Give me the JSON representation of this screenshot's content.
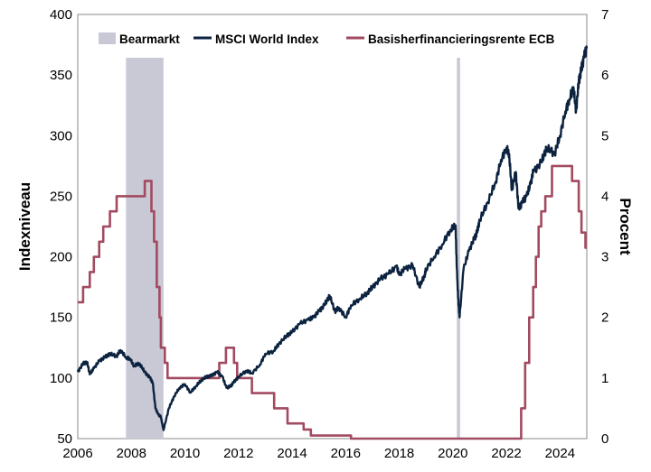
{
  "chart_data": {
    "type": "line",
    "title": "",
    "xlabel": "",
    "ylabel": "Indexniveau",
    "y2label": "Procent",
    "xlim": [
      2006,
      2025
    ],
    "ylim": [
      50,
      400
    ],
    "y2lim": [
      0,
      7
    ],
    "x_ticks": [
      "2006",
      "2008",
      "2010",
      "2012",
      "2014",
      "2016",
      "2018",
      "2020",
      "2022",
      "2024"
    ],
    "y_ticks": [
      "50",
      "100",
      "150",
      "200",
      "250",
      "300",
      "350",
      "400"
    ],
    "y2_ticks": [
      "0",
      "1",
      "2",
      "3",
      "4",
      "5",
      "6",
      "7"
    ],
    "legend": {
      "position": "top",
      "entries": [
        "Bearmarkt",
        "MSCI World Index",
        "Basisherfinancieringsrente ECB"
      ]
    },
    "colors": {
      "bear": "#c8c9d5",
      "msci": "#0c2340",
      "ecb": "#a24a60"
    },
    "bear_markets": [
      {
        "start": 2007.8,
        "end": 2009.2
      },
      {
        "start": 2020.15,
        "end": 2020.27
      }
    ],
    "series": [
      {
        "name": "MSCI World Index",
        "axis": "left",
        "x": [
          2006.0,
          2006.2,
          2006.35,
          2006.45,
          2006.6,
          2006.8,
          2007.0,
          2007.2,
          2007.45,
          2007.6,
          2007.8,
          2007.95,
          2008.1,
          2008.3,
          2008.5,
          2008.7,
          2008.8,
          2008.9,
          2009.0,
          2009.1,
          2009.2,
          2009.4,
          2009.6,
          2009.8,
          2010.0,
          2010.2,
          2010.4,
          2010.6,
          2010.8,
          2011.0,
          2011.2,
          2011.4,
          2011.55,
          2011.7,
          2011.8,
          2012.0,
          2012.3,
          2012.5,
          2012.8,
          2013.0,
          2013.3,
          2013.5,
          2013.8,
          2014.0,
          2014.3,
          2014.6,
          2014.8,
          2015.0,
          2015.2,
          2015.4,
          2015.6,
          2015.75,
          2016.0,
          2016.2,
          2016.5,
          2016.8,
          2017.0,
          2017.3,
          2017.6,
          2017.9,
          2018.0,
          2018.2,
          2018.5,
          2018.75,
          2018.95,
          2019.0,
          2019.3,
          2019.6,
          2019.9,
          2020.1,
          2020.15,
          2020.2,
          2020.25,
          2020.4,
          2020.6,
          2020.8,
          2020.9,
          2021.0,
          2021.3,
          2021.6,
          2021.8,
          2022.0,
          2022.1,
          2022.2,
          2022.35,
          2022.45,
          2022.6,
          2022.75,
          2022.9,
          2023.0,
          2023.3,
          2023.5,
          2023.8,
          2024.0,
          2024.2,
          2024.35,
          2024.5,
          2024.6,
          2024.7,
          2024.8,
          2024.9,
          2025.0
        ],
        "values": [
          105,
          112,
          113,
          103,
          108,
          114,
          117,
          120,
          118,
          123,
          117,
          116,
          110,
          112,
          105,
          100,
          96,
          75,
          70,
          68,
          57,
          75,
          85,
          92,
          95,
          88,
          93,
          98,
          101,
          102,
          105,
          101,
          92,
          93,
          96,
          101,
          106,
          104,
          111,
          120,
          122,
          128,
          135,
          138,
          145,
          148,
          150,
          155,
          160,
          168,
          155,
          158,
          150,
          160,
          165,
          170,
          175,
          182,
          186,
          192,
          185,
          190,
          193,
          175,
          185,
          190,
          200,
          210,
          222,
          226,
          190,
          165,
          150,
          190,
          205,
          215,
          220,
          230,
          245,
          262,
          280,
          290,
          285,
          255,
          270,
          240,
          245,
          250,
          260,
          270,
          278,
          290,
          285,
          300,
          320,
          330,
          340,
          320,
          345,
          355,
          365,
          372
        ]
      },
      {
        "name": "Basisherfinancieringsrente ECB",
        "axis": "right",
        "step": true,
        "x": [
          2006.0,
          2006.2,
          2006.45,
          2006.6,
          2006.8,
          2006.95,
          2007.2,
          2007.45,
          2008.5,
          2008.75,
          2008.85,
          2008.95,
          2009.05,
          2009.1,
          2009.25,
          2009.35,
          2011.28,
          2011.53,
          2011.83,
          2011.95,
          2012.5,
          2013.33,
          2013.83,
          2014.43,
          2014.7,
          2015.95,
          2016.2,
          2022.55,
          2022.7,
          2022.85,
          2023.0,
          2023.1,
          2023.2,
          2023.3,
          2023.45,
          2023.7,
          2024.45,
          2024.7,
          2024.8,
          2024.95
        ],
        "values": [
          2.25,
          2.5,
          2.75,
          3.0,
          3.25,
          3.5,
          3.75,
          4.0,
          4.25,
          3.75,
          3.25,
          2.5,
          2.0,
          1.5,
          1.25,
          1.0,
          1.25,
          1.5,
          1.25,
          1.0,
          0.75,
          0.5,
          0.25,
          0.15,
          0.05,
          0.05,
          0.0,
          0.5,
          1.25,
          2.0,
          2.5,
          3.0,
          3.5,
          3.75,
          4.0,
          4.5,
          4.25,
          3.75,
          3.4,
          3.15
        ]
      }
    ]
  }
}
